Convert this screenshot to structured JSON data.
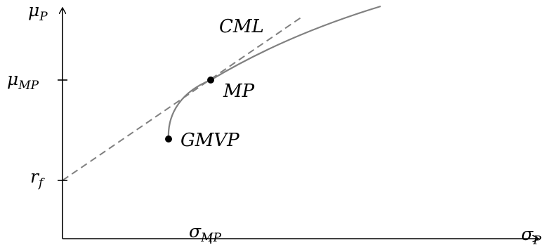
{
  "colors": {
    "axes": "#000000",
    "frontier": "#808080",
    "cml": "#808080",
    "points": "#000000",
    "background": "#ffffff"
  },
  "axes": {
    "y": {
      "main": "μ",
      "sub": "P"
    },
    "x": {
      "main": "σ",
      "sub": "P"
    }
  },
  "ticks": {
    "mu_mp": {
      "main": "μ",
      "sub": "MP"
    },
    "r_f": {
      "main": "r",
      "sub": "f"
    },
    "sigma_mp": {
      "main": "σ",
      "sub": "MP"
    }
  },
  "labels": {
    "cml": "CML",
    "mp": "MP",
    "gmvp": "GMVP"
  },
  "chart_data": {
    "type": "line",
    "series": [
      {
        "name": "CML",
        "style": "dashed"
      },
      {
        "style": "solid"
      }
    ],
    "points": [
      {
        "label": "MP"
      },
      {
        "label": "GMVP"
      }
    ]
  }
}
